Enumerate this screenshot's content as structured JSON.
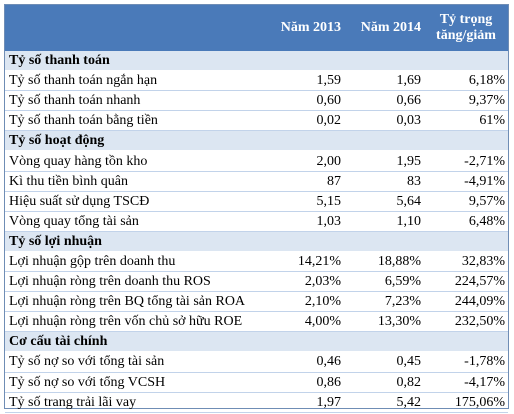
{
  "header": {
    "col_label": "",
    "col_2013": "Năm 2013",
    "col_2014": "Năm 2014",
    "col_change_line1": "Tỷ trọng",
    "col_change_line2": "tăng/giảm"
  },
  "chart_data": {
    "type": "table",
    "columns": [
      "",
      "Năm 2013",
      "Năm 2014",
      "Tỷ trọng tăng/giảm"
    ],
    "sections": [
      {
        "title": "Tỷ số thanh toán",
        "rows": [
          {
            "label": "Tỷ số thanh toán ngắn hạn",
            "y2013": "1,59",
            "y2014": "1,69",
            "change": "6,18%"
          },
          {
            "label": "Tỷ số thanh toán nhanh",
            "y2013": "0,60",
            "y2014": "0,66",
            "change": "9,37%"
          },
          {
            "label": "Tỷ số thanh toán bằng tiền",
            "y2013": "0,02",
            "y2014": "0,03",
            "change": "61%"
          }
        ]
      },
      {
        "title": "Tỷ số hoạt động",
        "rows": [
          {
            "label": "Vòng quay hàng tồn kho",
            "y2013": "2,00",
            "y2014": "1,95",
            "change": "-2,71%"
          },
          {
            "label": "Kì thu tiền bình quân",
            "y2013": "87",
            "y2014": "83",
            "change": "-4,91%"
          },
          {
            "label": "Hiệu suất sử dụng TSCĐ",
            "y2013": "5,15",
            "y2014": "5,64",
            "change": "9,57%"
          },
          {
            "label": "Vòng quay tổng tài sản",
            "y2013": "1,03",
            "y2014": "1,10",
            "change": "6,48%"
          }
        ]
      },
      {
        "title": "Tỷ số lợi nhuận",
        "rows": [
          {
            "label": "Lợi nhuận gộp trên doanh thu",
            "y2013": "14,21%",
            "y2014": "18,88%",
            "change": "32,83%"
          },
          {
            "label": "Lợi nhuận ròng trên doanh thu ROS",
            "y2013": "2,03%",
            "y2014": "6,59%",
            "change": "224,57%"
          },
          {
            "label": "Lợi nhuận ròng trên BQ tổng tài sản ROA",
            "y2013": "2,10%",
            "y2014": "7,23%",
            "change": "244,09%"
          },
          {
            "label": "Lợi nhuận ròng trên vốn chủ sở hữu ROE",
            "y2013": "4,00%",
            "y2014": "13,30%",
            "change": "232,50%"
          }
        ]
      },
      {
        "title": "Cơ cấu tài chính",
        "rows": [
          {
            "label": "Tỷ số nợ so với tổng tài sản",
            "y2013": "0,46",
            "y2014": "0,45",
            "change": "-1,78%"
          },
          {
            "label": "Tỷ số nợ so với tổng VCSH",
            "y2013": "0,86",
            "y2014": "0,82",
            "change": "-4,17%"
          },
          {
            "label": "Tỷ số trang trải lãi vay",
            "y2013": "1,97",
            "y2014": "5,42",
            "change": "175,06%"
          }
        ]
      }
    ]
  }
}
